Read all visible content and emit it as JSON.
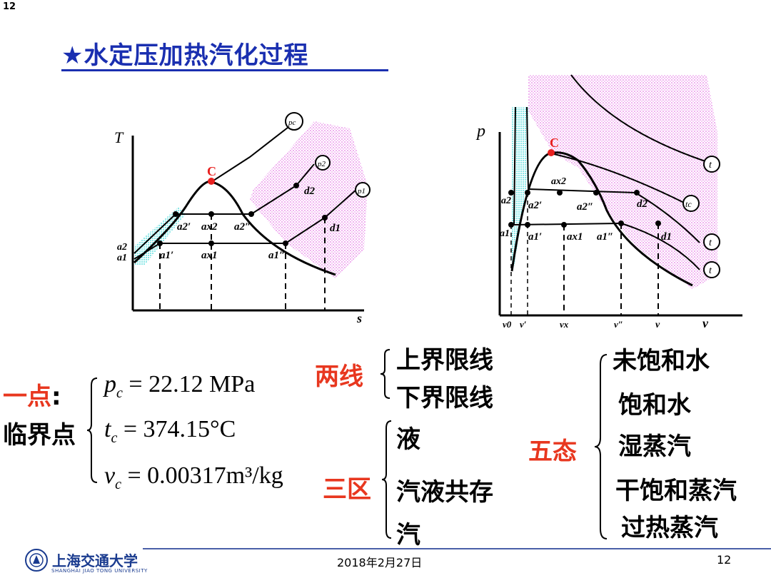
{
  "page": {
    "top_number": "12",
    "title": "★水定压加热汽化过程"
  },
  "ts_diagram": {
    "axis_t": "T",
    "axis_s": "s",
    "critical": "C",
    "p_c": "pc",
    "p_2": "p2",
    "p_1": "p1",
    "a2": "a2",
    "a1": "a1",
    "a2p": "a2′",
    "ax2": "ax2",
    "a2pp": "a2″",
    "d2": "d2",
    "a1p": "a1′",
    "ax1": "ax1",
    "a1pp": "a1″",
    "d1": "d1"
  },
  "pv_diagram": {
    "axis_p": "p",
    "axis_v": "v",
    "critical": "C",
    "t_label": "t",
    "tc_label": "tc",
    "ax2": "ax2",
    "a2": "a2",
    "a2p": "a2′",
    "a2pp": "a2″",
    "d2": "d2",
    "a1": "a1",
    "a1p": "a1′",
    "ax1": "ax1",
    "a1pp": "a1″",
    "d1": "d1",
    "v0": "v0",
    "vp": "v′",
    "vx": "vx",
    "vpp": "v″",
    "v": "v"
  },
  "critical_point": {
    "one_point": "一点",
    "colon": ":",
    "name": "临界点",
    "pc_value": "= 22.12 MPa",
    "tc_value": "= 374.15°C",
    "vc_value": "= 0.00317m³/kg"
  },
  "two_lines": {
    "label": "两线",
    "items": [
      "上界限线",
      "下界限线"
    ]
  },
  "three_zones": {
    "label": "三区",
    "items": [
      "液",
      "汽液共存",
      "汽"
    ]
  },
  "five_states": {
    "label": "五态",
    "items": [
      "未饱和水",
      "饱和水",
      "湿蒸汽",
      "干饱和蒸汽",
      "过热蒸汽"
    ]
  },
  "footer": {
    "university_cn": "上海交通大学",
    "university_en": "SHANGHAI JIAO TONG UNIVERSITY",
    "date": "2018年2月27日",
    "page": "12"
  },
  "colors": {
    "title": "#1a2fb0",
    "accent_red": "#e8371f",
    "critical_point": "#e8201f",
    "liquid_zone": "#35d6d6",
    "vapor_zone": "#e36be3"
  }
}
